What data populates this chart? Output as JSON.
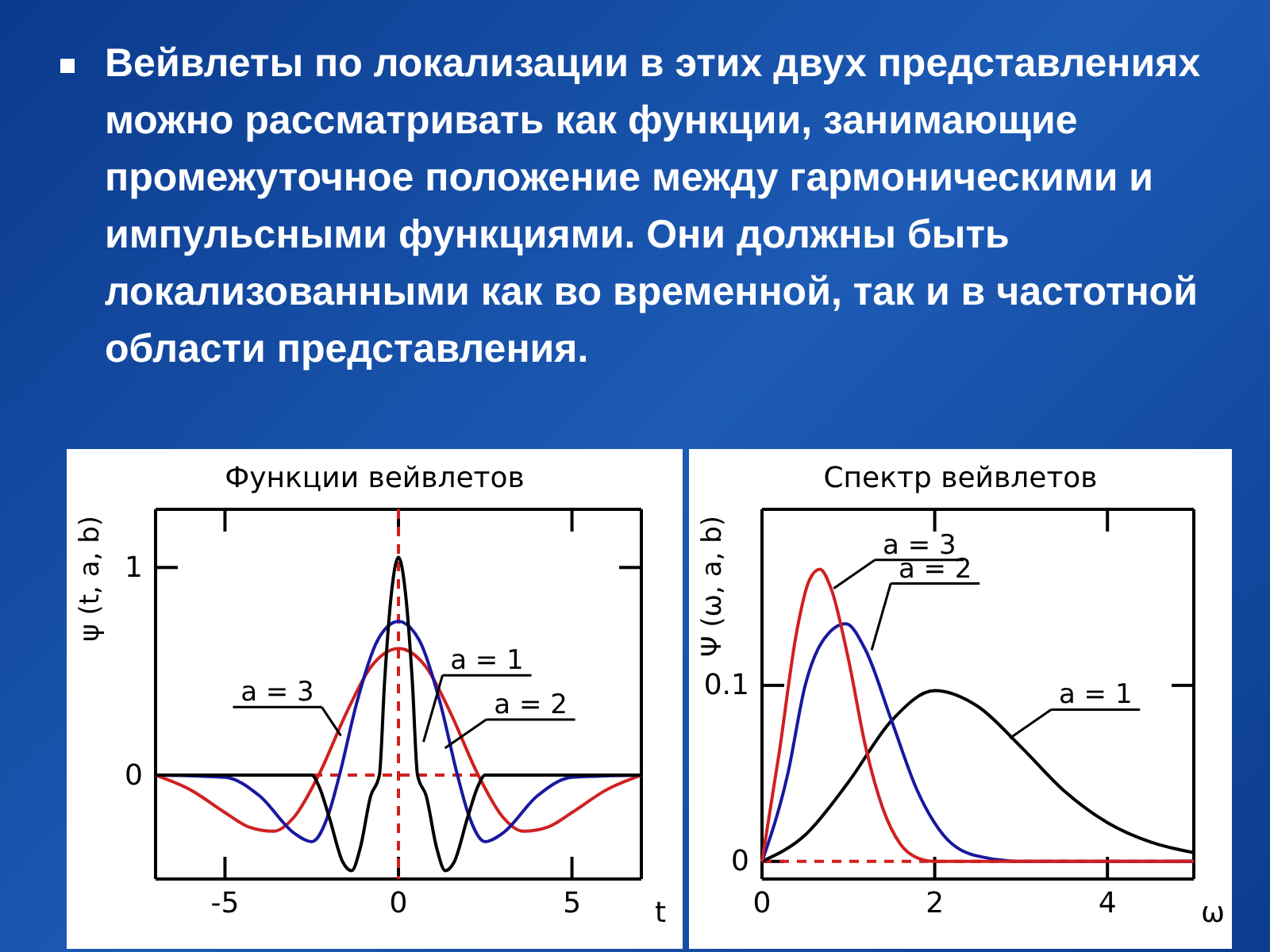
{
  "chart_data": [
    {
      "type": "other",
      "annotations": [
        "Вейвлеты по локализации в этих двух представлениях можно рассматривать как функции, занимающие промежуточное положение между гармоническими и импульсными функциями. Они должны быть локализованными как во временной, так и в частотной области представления."
      ]
    },
    {
      "type": "line",
      "title": "Функции вейвлетов",
      "xlabel": "t",
      "ylabel": "ψ (t, a, b)",
      "xlim": [
        -7,
        7
      ],
      "ylim": [
        -0.5,
        1.28
      ],
      "xticks": [
        -5,
        0,
        5
      ],
      "yticks": [
        0,
        1
      ],
      "marker": "none",
      "line_style": "solid",
      "series": [
        {
          "color": "#d02020",
          "x": [
            -7,
            -6,
            -5,
            -4.3,
            -3.6,
            -3,
            -2.3,
            -1.5,
            -0.8,
            0,
            0.8,
            1.5,
            2.3,
            3,
            3.6,
            4.3,
            5,
            6,
            7
          ],
          "values": [
            0,
            -0.07,
            -0.18,
            -0.25,
            -0.27,
            -0.2,
            0,
            0.3,
            0.52,
            0.61,
            0.52,
            0.3,
            0,
            -0.2,
            -0.27,
            -0.25,
            -0.18,
            -0.07,
            0
          ]
        },
        {
          "color": "#1818a0",
          "x": [
            -7,
            -5,
            -4,
            -3,
            -2.5,
            -2,
            -1.7,
            -1.2,
            -0.6,
            0,
            0.6,
            1.2,
            1.7,
            2,
            2.5,
            3,
            4,
            5,
            7
          ],
          "values": [
            0,
            -0.01,
            -0.1,
            -0.28,
            -0.32,
            -0.18,
            0,
            0.35,
            0.65,
            0.74,
            0.65,
            0.35,
            0,
            -0.18,
            -0.32,
            -0.28,
            -0.1,
            -0.01,
            0
          ]
        },
        {
          "color": "#000000",
          "x": [
            -7,
            -2.5,
            -2.3,
            -2,
            -1.6,
            -1.35,
            -1.1,
            -0.8,
            -0.55,
            -0.4,
            -0.2,
            0,
            0.2,
            0.4,
            0.55,
            0.8,
            1.1,
            1.35,
            1.6,
            2,
            2.3,
            2.5,
            7
          ],
          "values": [
            0,
            0,
            -0.05,
            -0.2,
            -0.42,
            -0.46,
            -0.35,
            -0.1,
            0,
            0.45,
            0.88,
            1.05,
            0.88,
            0.45,
            0,
            -0.1,
            -0.35,
            -0.46,
            -0.42,
            -0.2,
            -0.05,
            0,
            0
          ]
        }
      ],
      "ref_lines": [
        {
          "axis": "x",
          "value": 0,
          "color": "#d02020",
          "line_style": "dashed"
        },
        {
          "axis": "y",
          "value": 0,
          "color": "#d02020",
          "line_style": "dashed"
        }
      ],
      "annotations": [
        {
          "text": "a = 3",
          "x": -1.66,
          "y": 0.19
        },
        {
          "text": "a = 1",
          "x": 0.72,
          "y": 0.16
        },
        {
          "text": "a = 2",
          "x": 1.34,
          "y": 0.13
        }
      ]
    },
    {
      "type": "line",
      "title": "Спектр вейвлетов",
      "xlabel": "ω",
      "ylabel": "Ψ (ω, a, b)",
      "xlim": [
        0,
        5
      ],
      "ylim": [
        -0.01,
        0.2
      ],
      "xticks": [
        0,
        2,
        4
      ],
      "yticks": [
        0,
        0.1
      ],
      "marker": "none",
      "line_style": "solid",
      "series": [
        {
          "color": "#000000",
          "x": [
            0,
            0.5,
            1,
            1.5,
            2,
            2.5,
            3,
            3.5,
            4,
            4.5,
            5
          ],
          "values": [
            0,
            0.015,
            0.045,
            0.08,
            0.097,
            0.088,
            0.065,
            0.04,
            0.022,
            0.011,
            0.005
          ]
        },
        {
          "color": "#1818a0",
          "x": [
            0,
            0.3,
            0.5,
            0.7,
            0.97,
            1.2,
            1.5,
            1.8,
            2.1,
            2.5,
            3,
            5
          ],
          "values": [
            0,
            0.05,
            0.1,
            0.125,
            0.135,
            0.12,
            0.08,
            0.04,
            0.015,
            0.003,
            0,
            0
          ]
        },
        {
          "color": "#d02020",
          "x": [
            0,
            0.2,
            0.4,
            0.55,
            0.67,
            0.8,
            1,
            1.2,
            1.4,
            1.6,
            1.8,
            2,
            5
          ],
          "values": [
            0,
            0.062,
            0.13,
            0.16,
            0.166,
            0.155,
            0.115,
            0.065,
            0.03,
            0.01,
            0.002,
            0,
            0
          ]
        }
      ],
      "ref_lines": [
        {
          "axis": "y",
          "value": 0,
          "color": "#d02020",
          "line_style": "dashed"
        }
      ],
      "annotations": [
        {
          "text": "a = 3",
          "x": 0.83,
          "y": 0.155
        },
        {
          "text": "a = 2",
          "x": 1.27,
          "y": 0.12
        },
        {
          "text": "a = 1",
          "x": 2.87,
          "y": 0.07
        }
      ]
    }
  ]
}
